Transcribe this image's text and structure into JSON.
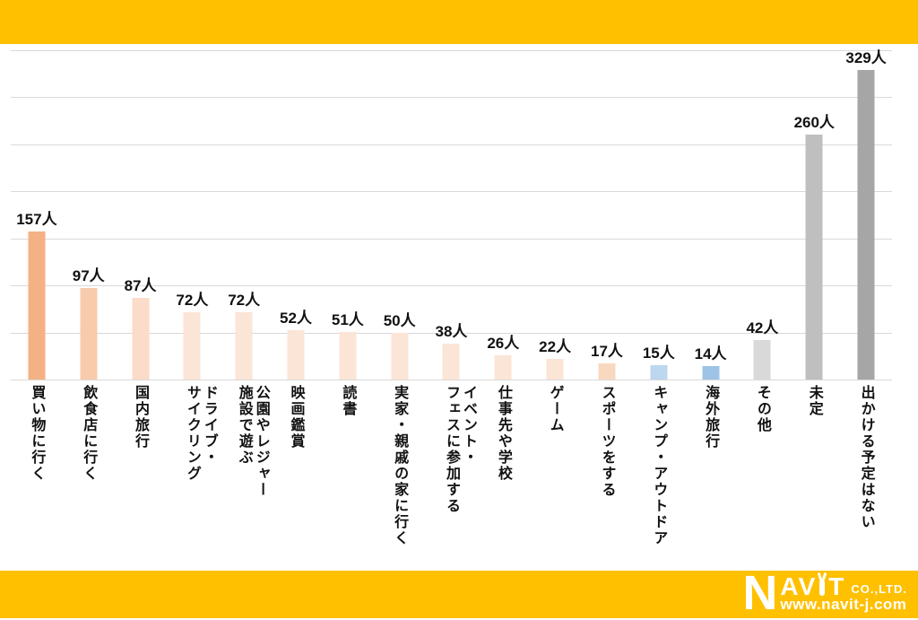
{
  "page": {
    "background": "#FFFFFF",
    "banner_color": "#FFC000",
    "gridline_color": "#D9D9D9"
  },
  "chart_data": {
    "type": "bar",
    "title": "",
    "unit": "人",
    "ylim": [
      0,
      350
    ],
    "gridline_step": 50,
    "grid": true,
    "legend": "none",
    "categories": [
      "買い物に行く",
      "飲食店に行く",
      "国内旅行",
      "ドライブ・\nサイクリング",
      "公園やレジャー\n施設で遊ぶ",
      "映画鑑賞",
      "読書",
      "実家・親戚の家に行く",
      "イベント・\nフェスに参加する",
      "仕事先や学校",
      "ゲーム",
      "スポーツをする",
      "キャンプ・アウトドア",
      "海外旅行",
      "その他",
      "未定",
      "出かける予定はない"
    ],
    "values": [
      157,
      97,
      87,
      72,
      72,
      52,
      51,
      50,
      38,
      26,
      22,
      17,
      15,
      14,
      42,
      260,
      329
    ],
    "value_labels": [
      "157人",
      "97人",
      "87人",
      "72人",
      "72人",
      "52人",
      "51人",
      "50人",
      "38人",
      "26人",
      "22人",
      "17人",
      "15人",
      "14人",
      "42人",
      "260人",
      "329人"
    ],
    "bar_colors": [
      "#F4B183",
      "#F8CBAD",
      "#FADCC8",
      "#FBE5D6",
      "#FBE5D6",
      "#FBE5D6",
      "#FBE5D6",
      "#FBE5D6",
      "#FBE5D6",
      "#FBE5D6",
      "#FBE5D6",
      "#F9D8C0",
      "#BDD7EE",
      "#9DC3E6",
      "#D9D9D9",
      "#BFBFBF",
      "#A6A6A6"
    ]
  },
  "footer": {
    "logo": {
      "n": "N",
      "av": "AV",
      "i_letter": "i",
      "t": "T",
      "co": "CO.,LTD.",
      "website": "www.navit-j.com"
    }
  }
}
